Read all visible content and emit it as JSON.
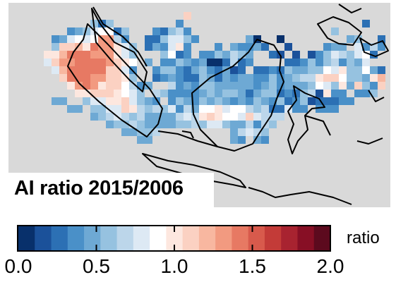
{
  "map": {
    "title": "AI ratio 2015/2006",
    "background_color": "#d9d9d9",
    "coastline_color": "#000000",
    "ratio_rows": [
      "............................................................",
      "......................k.............................",
      "..........fcf........d.......................c.......fd....",
      ".......defhiicf...dcfgd..................f......a....dfc....",
      ".....dehihimmgd..ccfhhfd......ea..a........ef..cfc..bdc.....",
      ".....fkkljnmmjhf.cedhjd...d.eddec..b....dee.hdgd............",
      "....jjlnnnmmmjhf...ficd.ddfegfe..cb.b.bdfhgfhic..d......e..",
      "....hkmmnnnnmkji.e.ddfedeaacgcd....ccdfdfgdfeh.......ff....",
      ".....hlnnnnnkkhd..dffdcefdcebc.ccdcfeeffihjffiec.....d.....",
      "......knnnmmkkjf..cdedccfecedeeddfdefggjkkiffejlf..........",
      ".......jmnmjkkigde..gdedffeeeeedefdeeefihfjekfdkj...........",
      "........jjkkkjihf.gfddddefeffeceffcdcfgbjdd.ddf......ed.....",
      ".....ee..fhhjjkhfed.dfedfefededfedfcdfbcccdd........j..f....",
      ".......ee.ffhhkjgfgfhdgeiijhiigfgcchdd.ddd....................",
      "..........efghgfgeeeeghgjkjiihkhggg..........................",
      "............effgfeeeeffgfhhfeegdgf............................",
      "..............eeffg.........eghgf.............................",
      "................ee..........ed.ed.............................",
      "..............................................................",
      "..................................................b.........",
      ".....................................................b......."
    ]
  },
  "colorbar": {
    "colors": [
      "#08306b",
      "#1b519a",
      "#2c70b4",
      "#4a90c8",
      "#6ea9d4",
      "#96c2e0",
      "#bcd6ea",
      "#dde9f4",
      "#ffffff",
      "#fde7df",
      "#fbd1c2",
      "#f8b7a0",
      "#f29a80",
      "#e77963",
      "#d85a4c",
      "#c33b38",
      "#a82330",
      "#870f25",
      "#5c0a1e"
    ],
    "min": 0.0,
    "max": 2.0,
    "ticks": [
      "0.0",
      "0.5",
      "1.0",
      "1.5",
      "2.0"
    ],
    "unit_label": "ratio"
  }
}
